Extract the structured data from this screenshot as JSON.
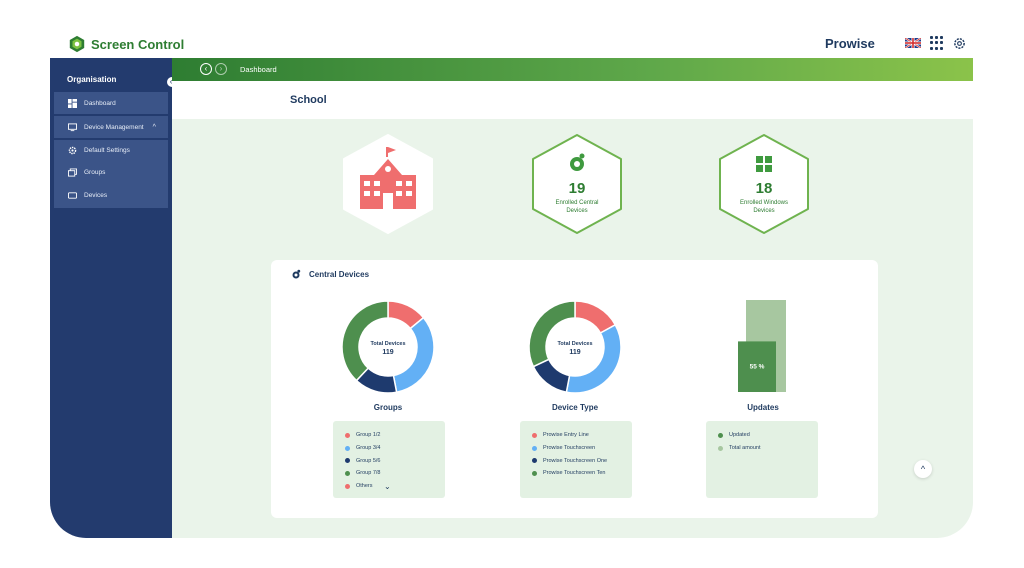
{
  "brand": {
    "app_name": "Screen Control",
    "company": "Prowise",
    "accent": "#2e7d32",
    "icons": [
      "uk-flag-icon",
      "apps-grid-icon",
      "settings-gear-icon"
    ]
  },
  "sidebar": {
    "heading": "Organisation",
    "items": [
      {
        "label": "Dashboard",
        "icon": "dashboard-icon"
      },
      {
        "label": "Device Management",
        "icon": "monitor-icon"
      }
    ],
    "subitems": [
      {
        "label": "Default Settings",
        "icon": "gear-icon"
      },
      {
        "label": "Groups",
        "icon": "groups-icon"
      },
      {
        "label": "Devices",
        "icon": "device-icon"
      }
    ]
  },
  "header": {
    "breadcrumb": "Dashboard",
    "page_title": "School"
  },
  "stats": [
    {
      "icon": "school-building-icon"
    },
    {
      "count": "19",
      "caption": "Enrolled Central Devices",
      "icon": "central-logo-icon"
    },
    {
      "count": "18",
      "caption": "Enrolled Windows Devices",
      "icon": "windows-logo-icon"
    }
  ],
  "central": {
    "title": "Central Devices",
    "center_label": "Total Devices",
    "center_value": "119"
  },
  "chart_data": [
    {
      "type": "pie",
      "title": "Groups",
      "categories": [
        "Group 1/2",
        "Group 3/4",
        "Group 5/6",
        "Group 7/8",
        "Others"
      ],
      "values": [
        14,
        33,
        15,
        38,
        0
      ],
      "colors": [
        "#ef6e6e",
        "#63b0f5",
        "#1e3a6e",
        "#4e8f4e",
        "#ef6e6e"
      ],
      "legend_placement": "bottom"
    },
    {
      "type": "pie",
      "title": "Device Type",
      "categories": [
        "Prowise Entry Line",
        "Prowise Touchscreen",
        "Prowise Touchscreen One",
        "Prowise Touchscreen Ten"
      ],
      "values": [
        17,
        36,
        15,
        32
      ],
      "colors": [
        "#ef6e6e",
        "#63b0f5",
        "#1e3a6e",
        "#4e8f4e"
      ],
      "legend_placement": "bottom"
    },
    {
      "type": "bar",
      "title": "Updates",
      "categories": [
        "Updated",
        "Total amount"
      ],
      "values": [
        55,
        100
      ],
      "value_label": "55 %",
      "colors": [
        "#4e8f4e",
        "#a7c7a0"
      ],
      "legend_placement": "bottom"
    }
  ]
}
